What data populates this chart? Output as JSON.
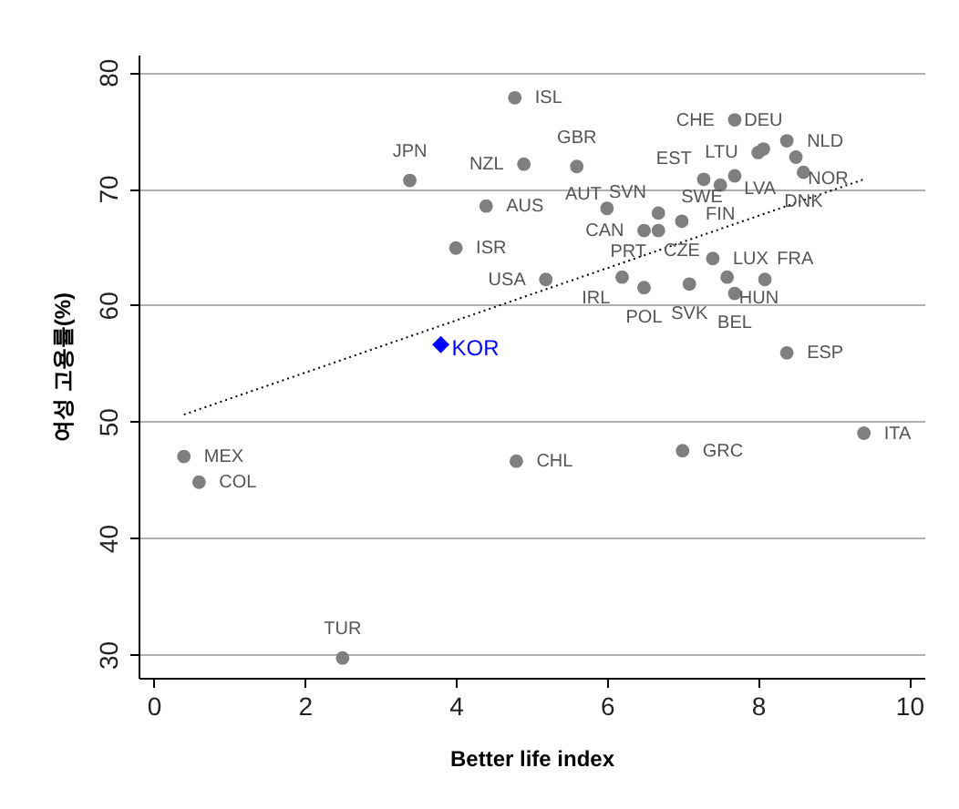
{
  "chart_data": {
    "type": "scatter",
    "xlabel": "Better life index",
    "ylabel": "여성 고용률(%)",
    "xlim": [
      -0.2,
      10.2
    ],
    "ylim": [
      28,
      81.5
    ],
    "xticks": [
      0,
      2,
      4,
      6,
      8,
      10
    ],
    "yticks": [
      30,
      40,
      50,
      60,
      70,
      80
    ],
    "grid": "y",
    "series": [
      {
        "color": "#7f7f7f",
        "marker": "circle",
        "x": [
          4.78,
          3.39,
          4.9,
          5.6,
          4.4,
          4.0,
          5.19,
          6.0,
          6.68,
          6.49,
          6.68,
          6.99,
          6.2,
          6.49,
          7.09,
          7.28,
          7.5,
          7.55,
          7.69,
          7.69,
          8.0,
          8.07,
          8.38,
          8.5,
          8.6,
          7.4,
          7.59,
          7.69,
          8.09,
          8.38,
          0.4,
          0.6,
          4.8,
          7.0,
          9.4,
          2.5
        ],
        "values": [
          77.8,
          70.7,
          72.1,
          71.9,
          68.5,
          64.9,
          62.2,
          68.3,
          67.9,
          66.4,
          66.4,
          67.2,
          62.4,
          61.5,
          61.8,
          70.8,
          70.3,
          null,
          71.1,
          75.9,
          73.1,
          73.4,
          74.1,
          72.7,
          71.4,
          64.0,
          62.4,
          61.0,
          62.2,
          55.9,
          47.0,
          44.8,
          46.6,
          47.5,
          49.0,
          29.7
        ]
      },
      {
        "name": "KOR",
        "color": "#0000ff",
        "marker": "diamond",
        "x": [
          3.8
        ],
        "values": [
          56.6
        ]
      },
      {
        "type": "line",
        "color": "#000000",
        "line_style": "dotted",
        "marker": "none",
        "x": [
          0.4,
          9.4
        ],
        "values": [
          50.6,
          70.8
        ]
      }
    ],
    "annotations": [
      {
        "text": "ISL",
        "x": 4.78,
        "y": 77.8
      },
      {
        "text": "JPN",
        "x": 3.39,
        "y": 70.7
      },
      {
        "text": "NZL",
        "x": 4.9,
        "y": 72.1
      },
      {
        "text": "GBR",
        "x": 5.6,
        "y": 71.9
      },
      {
        "text": "AUS",
        "x": 4.4,
        "y": 68.5
      },
      {
        "text": "ISR",
        "x": 4.0,
        "y": 64.9
      },
      {
        "text": "USA",
        "x": 5.19,
        "y": 62.2
      },
      {
        "text": "AUT",
        "x": 6.0,
        "y": 68.3
      },
      {
        "text": "SVN",
        "x": 6.68,
        "y": 67.9
      },
      {
        "text": "CAN",
        "x": 6.49,
        "y": 66.4
      },
      {
        "text": "PRT",
        "x": 6.68,
        "y": 66.4
      },
      {
        "text": "CZE",
        "x": 6.99,
        "y": 67.2
      },
      {
        "text": "IRL",
        "x": 6.2,
        "y": 62.4
      },
      {
        "text": "POL",
        "x": 6.49,
        "y": 61.5
      },
      {
        "text": "SVK",
        "x": 7.09,
        "y": 61.8
      },
      {
        "text": "EST",
        "x": 7.28,
        "y": 70.8
      },
      {
        "text": "FIN",
        "x": 7.5,
        "y": 70.3
      },
      {
        "text": "LVA",
        "x": 7.55,
        "y": 70.0
      },
      {
        "text": "SWE",
        "x": 7.69,
        "y": 71.1
      },
      {
        "text": "CHE",
        "x": 7.69,
        "y": 75.9
      },
      {
        "text": "LTU",
        "x": 8.0,
        "y": 73.1
      },
      {
        "text": "DEU",
        "x": 8.07,
        "y": 73.4
      },
      {
        "text": "NLD",
        "x": 8.38,
        "y": 74.1
      },
      {
        "text": "NOR",
        "x": 8.5,
        "y": 72.7
      },
      {
        "text": "DNK",
        "x": 8.6,
        "y": 71.4
      },
      {
        "text": "LUX",
        "x": 7.4,
        "y": 64.0
      },
      {
        "text": "HUN",
        "x": 7.59,
        "y": 62.4
      },
      {
        "text": "BEL",
        "x": 7.69,
        "y": 61.0
      },
      {
        "text": "FRA",
        "x": 8.09,
        "y": 62.2
      },
      {
        "text": "ESP",
        "x": 8.38,
        "y": 55.9
      },
      {
        "text": "MEX",
        "x": 0.4,
        "y": 47.0
      },
      {
        "text": "COL",
        "x": 0.6,
        "y": 44.8
      },
      {
        "text": "CHL",
        "x": 4.8,
        "y": 46.6
      },
      {
        "text": "GRC",
        "x": 7.0,
        "y": 47.5
      },
      {
        "text": "ITA",
        "x": 9.4,
        "y": 49.0
      },
      {
        "text": "TUR",
        "x": 2.5,
        "y": 29.7
      }
    ]
  }
}
